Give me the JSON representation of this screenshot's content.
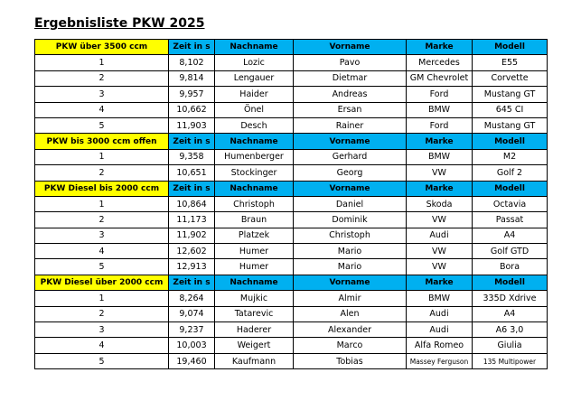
{
  "title": "Ergebnisliste PKW 2025",
  "sections": [
    {
      "header": [
        "PKW über 3500 ccm",
        "Zeit in s",
        "Nachname",
        "Vorname",
        "Marke",
        "Modell"
      ],
      "rows": [
        [
          "1",
          "8,102",
          "Lozic",
          "Pavo",
          "Mercedes",
          "E55"
        ],
        [
          "2",
          "9,814",
          "Lengauer",
          "Dietmar",
          "GM Chevrolet",
          "Corvette"
        ],
        [
          "3",
          "9,957",
          "Haider",
          "Andreas",
          "Ford",
          "Mustang GT"
        ],
        [
          "4",
          "10,662",
          "Önel",
          "Ersan",
          "BMW",
          "645 CI"
        ],
        [
          "5",
          "11,903",
          "Desch",
          "Rainer",
          "Ford",
          "Mustang GT"
        ]
      ]
    },
    {
      "header": [
        "PKW bis 3000 ccm offen",
        "Zeit in s",
        "Nachname",
        "Vorname",
        "Marke",
        "Modell"
      ],
      "rows": [
        [
          "1",
          "9,358",
          "Humenberger",
          "Gerhard",
          "BMW",
          "M2"
        ],
        [
          "2",
          "10,651",
          "Stockinger",
          "Georg",
          "VW",
          "Golf 2"
        ]
      ]
    },
    {
      "header": [
        "PKW Diesel bis 2000 ccm",
        "Zeit in s",
        "Nachname",
        "Vorname",
        "Marke",
        "Modell"
      ],
      "rows": [
        [
          "1",
          "10,864",
          "Christoph",
          "Daniel",
          "Skoda",
          "Octavia"
        ],
        [
          "2",
          "11,173",
          "Braun",
          "Dominik",
          "VW",
          "Passat"
        ],
        [
          "3",
          "11,902",
          "Platzek",
          "Christoph",
          "Audi",
          "A4"
        ],
        [
          "4",
          "12,602",
          "Humer",
          "Mario",
          "VW",
          "Golf GTD"
        ],
        [
          "5",
          "12,913",
          "Humer",
          "Mario",
          "VW",
          "Bora"
        ]
      ]
    },
    {
      "header": [
        "PKW Diesel über 2000 ccm",
        "Zeit in s",
        "Nachname",
        "Vorname",
        "Marke",
        "Modell"
      ],
      "rows": [
        [
          "1",
          "8,264",
          "Mujkic",
          "Almir",
          "BMW",
          "335D Xdrive"
        ],
        [
          "2",
          "9,074",
          "Tatarevic",
          "Alen",
          "Audi",
          "A4"
        ],
        [
          "3",
          "9,237",
          "Haderer",
          "Alexander",
          "Audi",
          "A6 3,0"
        ],
        [
          "4",
          "10,003",
          "Weigert",
          "Marco",
          "Alfa Romeo",
          "Giulia"
        ],
        [
          "5",
          "19,460",
          "Kaufmann",
          "Tobias",
          "Massey Ferguson",
          "135 Multipower"
        ]
      ]
    }
  ]
}
